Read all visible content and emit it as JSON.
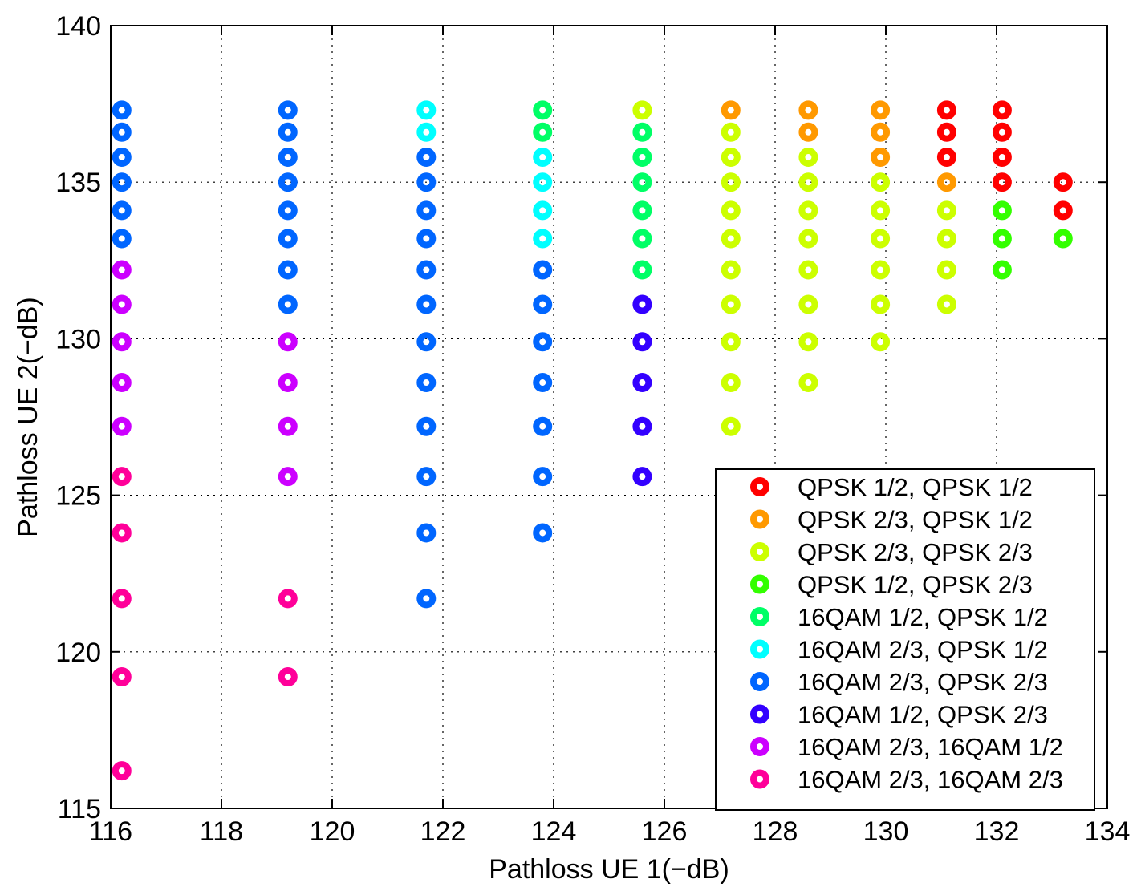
{
  "chart_data": {
    "type": "scatter",
    "title": "",
    "xlabel": "Pathloss UE 1(−dB)",
    "ylabel": "Pathloss UE 2(−dB)",
    "xlim": [
      116,
      134
    ],
    "ylim": [
      115,
      140
    ],
    "xticks": [
      116,
      118,
      120,
      122,
      124,
      126,
      128,
      130,
      132,
      134
    ],
    "yticks": [
      115,
      120,
      125,
      130,
      135,
      140
    ],
    "grid": true,
    "legend_position": "bottom-right",
    "marker": "ring",
    "series": [
      {
        "name": "QPSK 1/2, QPSK 1/2",
        "color": "#ff0000",
        "points": [
          [
            131.1,
            137.3
          ],
          [
            131.1,
            136.6
          ],
          [
            131.1,
            135.8
          ],
          [
            132.1,
            137.3
          ],
          [
            132.1,
            136.6
          ],
          [
            132.1,
            135.8
          ],
          [
            132.1,
            135.0
          ],
          [
            133.2,
            135.0
          ],
          [
            133.2,
            134.1
          ]
        ]
      },
      {
        "name": "QPSK 2/3, QPSK 1/2",
        "color": "#ff9900",
        "points": [
          [
            127.2,
            137.3
          ],
          [
            128.6,
            137.3
          ],
          [
            128.6,
            136.6
          ],
          [
            129.9,
            137.3
          ],
          [
            129.9,
            136.6
          ],
          [
            129.9,
            135.8
          ],
          [
            131.1,
            135.0
          ]
        ]
      },
      {
        "name": "QPSK 2/3, QPSK 2/3",
        "color": "#ccff00",
        "points": [
          [
            125.6,
            137.3
          ],
          [
            127.2,
            136.6
          ],
          [
            127.2,
            135.8
          ],
          [
            127.2,
            135.0
          ],
          [
            127.2,
            134.1
          ],
          [
            127.2,
            133.2
          ],
          [
            127.2,
            132.2
          ],
          [
            127.2,
            131.1
          ],
          [
            127.2,
            129.9
          ],
          [
            127.2,
            128.6
          ],
          [
            127.2,
            127.2
          ],
          [
            128.6,
            135.8
          ],
          [
            128.6,
            135.0
          ],
          [
            128.6,
            134.1
          ],
          [
            128.6,
            133.2
          ],
          [
            128.6,
            132.2
          ],
          [
            128.6,
            131.1
          ],
          [
            128.6,
            129.9
          ],
          [
            128.6,
            128.6
          ],
          [
            129.9,
            135.0
          ],
          [
            129.9,
            134.1
          ],
          [
            129.9,
            133.2
          ],
          [
            129.9,
            132.2
          ],
          [
            129.9,
            131.1
          ],
          [
            129.9,
            129.9
          ],
          [
            131.1,
            134.1
          ],
          [
            131.1,
            133.2
          ],
          [
            131.1,
            132.2
          ],
          [
            131.1,
            131.1
          ]
        ]
      },
      {
        "name": "QPSK 1/2, QPSK 2/3",
        "color": "#33ff00",
        "points": [
          [
            132.1,
            134.1
          ],
          [
            132.1,
            133.2
          ],
          [
            132.1,
            132.2
          ],
          [
            133.2,
            133.2
          ]
        ]
      },
      {
        "name": "16QAM 1/2, QPSK 1/2",
        "color": "#00ff66",
        "points": [
          [
            123.8,
            137.3
          ],
          [
            123.8,
            136.6
          ],
          [
            125.6,
            136.6
          ],
          [
            125.6,
            135.8
          ],
          [
            125.6,
            135.0
          ],
          [
            125.6,
            134.1
          ],
          [
            125.6,
            133.2
          ],
          [
            125.6,
            132.2
          ]
        ]
      },
      {
        "name": "16QAM 2/3, QPSK 1/2",
        "color": "#00ffff",
        "points": [
          [
            121.7,
            137.3
          ],
          [
            121.7,
            136.6
          ],
          [
            123.8,
            135.8
          ],
          [
            123.8,
            135.0
          ],
          [
            123.8,
            134.1
          ],
          [
            123.8,
            133.2
          ]
        ]
      },
      {
        "name": "16QAM 2/3, QPSK 2/3",
        "color": "#0066ff",
        "points": [
          [
            116.2,
            137.3
          ],
          [
            116.2,
            136.6
          ],
          [
            116.2,
            135.8
          ],
          [
            116.2,
            135.0
          ],
          [
            116.2,
            134.1
          ],
          [
            116.2,
            133.2
          ],
          [
            119.2,
            137.3
          ],
          [
            119.2,
            136.6
          ],
          [
            119.2,
            135.8
          ],
          [
            119.2,
            135.0
          ],
          [
            119.2,
            134.1
          ],
          [
            119.2,
            133.2
          ],
          [
            119.2,
            132.2
          ],
          [
            119.2,
            131.1
          ],
          [
            121.7,
            135.8
          ],
          [
            121.7,
            135.0
          ],
          [
            121.7,
            134.1
          ],
          [
            121.7,
            133.2
          ],
          [
            121.7,
            132.2
          ],
          [
            121.7,
            131.1
          ],
          [
            121.7,
            129.9
          ],
          [
            121.7,
            128.6
          ],
          [
            121.7,
            127.2
          ],
          [
            121.7,
            125.6
          ],
          [
            121.7,
            123.8
          ],
          [
            121.7,
            121.7
          ],
          [
            123.8,
            132.2
          ],
          [
            123.8,
            131.1
          ],
          [
            123.8,
            129.9
          ],
          [
            123.8,
            128.6
          ],
          [
            123.8,
            127.2
          ],
          [
            123.8,
            125.6
          ],
          [
            123.8,
            123.8
          ]
        ]
      },
      {
        "name": "16QAM 1/2, QPSK 2/3",
        "color": "#3300ff",
        "points": [
          [
            125.6,
            131.1
          ],
          [
            125.6,
            129.9
          ],
          [
            125.6,
            128.6
          ],
          [
            125.6,
            127.2
          ],
          [
            125.6,
            125.6
          ]
        ]
      },
      {
        "name": "16QAM 2/3, 16QAM 1/2",
        "color": "#cc00ff",
        "points": [
          [
            116.2,
            132.2
          ],
          [
            116.2,
            131.1
          ],
          [
            116.2,
            129.9
          ],
          [
            116.2,
            128.6
          ],
          [
            116.2,
            127.2
          ],
          [
            119.2,
            129.9
          ],
          [
            119.2,
            128.6
          ],
          [
            119.2,
            127.2
          ],
          [
            119.2,
            125.6
          ]
        ]
      },
      {
        "name": "16QAM 2/3, 16QAM 2/3",
        "color": "#ff0099",
        "points": [
          [
            116.2,
            125.6
          ],
          [
            116.2,
            123.8
          ],
          [
            116.2,
            121.7
          ],
          [
            116.2,
            119.2
          ],
          [
            116.2,
            116.2
          ],
          [
            119.2,
            121.7
          ],
          [
            119.2,
            119.2
          ]
        ]
      }
    ]
  }
}
